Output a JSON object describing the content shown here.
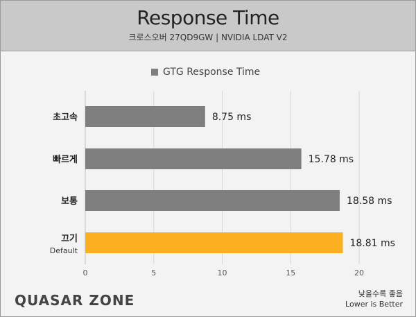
{
  "header": {
    "title": "Response Time",
    "subtitle": "크로스오버 27QD9GW  |  NVIDIA LDAT V2"
  },
  "legend": {
    "label": "GTG Response Time"
  },
  "footer": {
    "brand": "QUASAR ZONE",
    "note_line1": "낮을수록 좋음",
    "note_line2": "Lower is Better"
  },
  "colors": {
    "bar": "#7f7f7f",
    "highlight": "#fbb021"
  },
  "chart_data": {
    "type": "bar",
    "orientation": "horizontal",
    "title": "Response Time",
    "subtitle": "크로스오버 27QD9GW  |  NVIDIA LDAT V2",
    "categories": [
      "초고속",
      "빠르게",
      "보통",
      "끄기"
    ],
    "category_sublabels": [
      "",
      "",
      "",
      "Default"
    ],
    "series": [
      {
        "name": "GTG Response Time",
        "values": [
          8.75,
          15.78,
          18.58,
          18.81
        ]
      }
    ],
    "value_labels": [
      "8.75 ms",
      "15.78 ms",
      "18.58 ms",
      "18.81 ms"
    ],
    "highlight_index": 3,
    "xlim": [
      0,
      20
    ],
    "xticks": [
      0,
      5,
      10,
      15,
      20
    ],
    "grid": true,
    "legend_position": "top"
  }
}
